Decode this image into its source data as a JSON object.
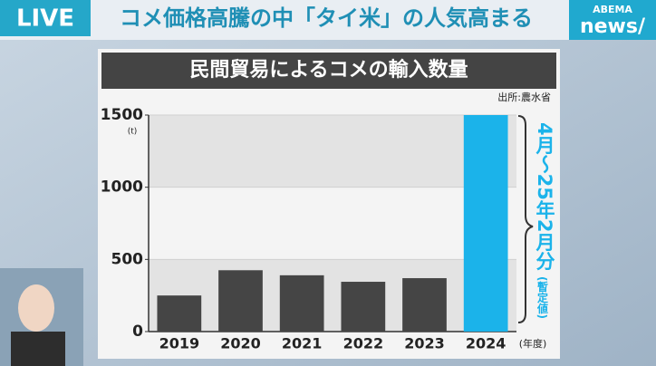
{
  "header": {
    "live": "LIVE",
    "headline": "コメ価格高騰の中「タイ米」の人気高まる",
    "logo_top": "ABEMA",
    "logo_bottom": "news/"
  },
  "chart_data": {
    "type": "bar",
    "title": "民間貿易によるコメの輸入数量",
    "source": "出所:農水省",
    "y_unit": "(t)",
    "x_unit": "(年度)",
    "categories": [
      "2019",
      "2020",
      "2021",
      "2022",
      "2023",
      "2024"
    ],
    "values": [
      250,
      425,
      390,
      345,
      370,
      1500
    ],
    "colors": [
      "#454545",
      "#454545",
      "#454545",
      "#454545",
      "#454545",
      "#1bb3ea"
    ],
    "ylim": [
      0,
      1500
    ],
    "yticks": [
      0,
      500,
      1000,
      1500
    ],
    "grid": true,
    "annotation": "4月〜25年2月分",
    "annotation_note": "(暫定値)"
  }
}
